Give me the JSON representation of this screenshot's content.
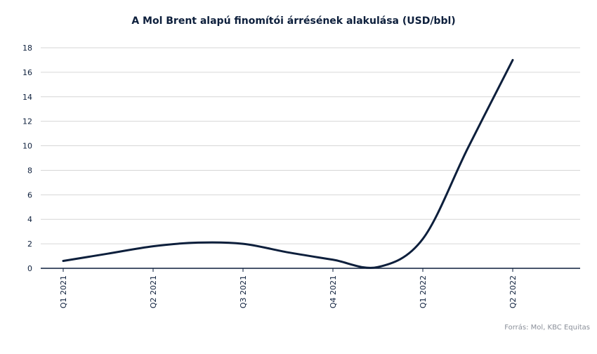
{
  "chart_data": {
    "type": "line",
    "title": "A Mol Brent alapú finomítói árrésének alakulása (USD/bbl)",
    "categories": [
      "Q1 2021",
      "Q2 2021",
      "Q3 2021",
      "Q4 2021",
      "Q1 2022",
      "Q2 2022"
    ],
    "x_tick_indices": [
      0,
      2,
      4,
      6,
      8,
      10
    ],
    "x_min": -0.5,
    "x_max": 11.5,
    "series": [
      {
        "x": [
          0,
          1,
          2,
          3,
          4,
          5,
          6,
          7,
          8,
          9,
          10
        ],
        "values": [
          0.6,
          1.2,
          1.8,
          2.1,
          2.0,
          1.3,
          0.7,
          0.1,
          2.4,
          9.8,
          17.0
        ]
      }
    ],
    "ylim": [
      0,
      18
    ],
    "yticks": [
      0,
      2,
      4,
      6,
      8,
      10,
      12,
      14,
      16,
      18
    ],
    "grid": true,
    "line_color": "#0d1f3c",
    "grid_color": "#d6d6d6",
    "source": "Forrás: Mol, KBC Equitas"
  }
}
